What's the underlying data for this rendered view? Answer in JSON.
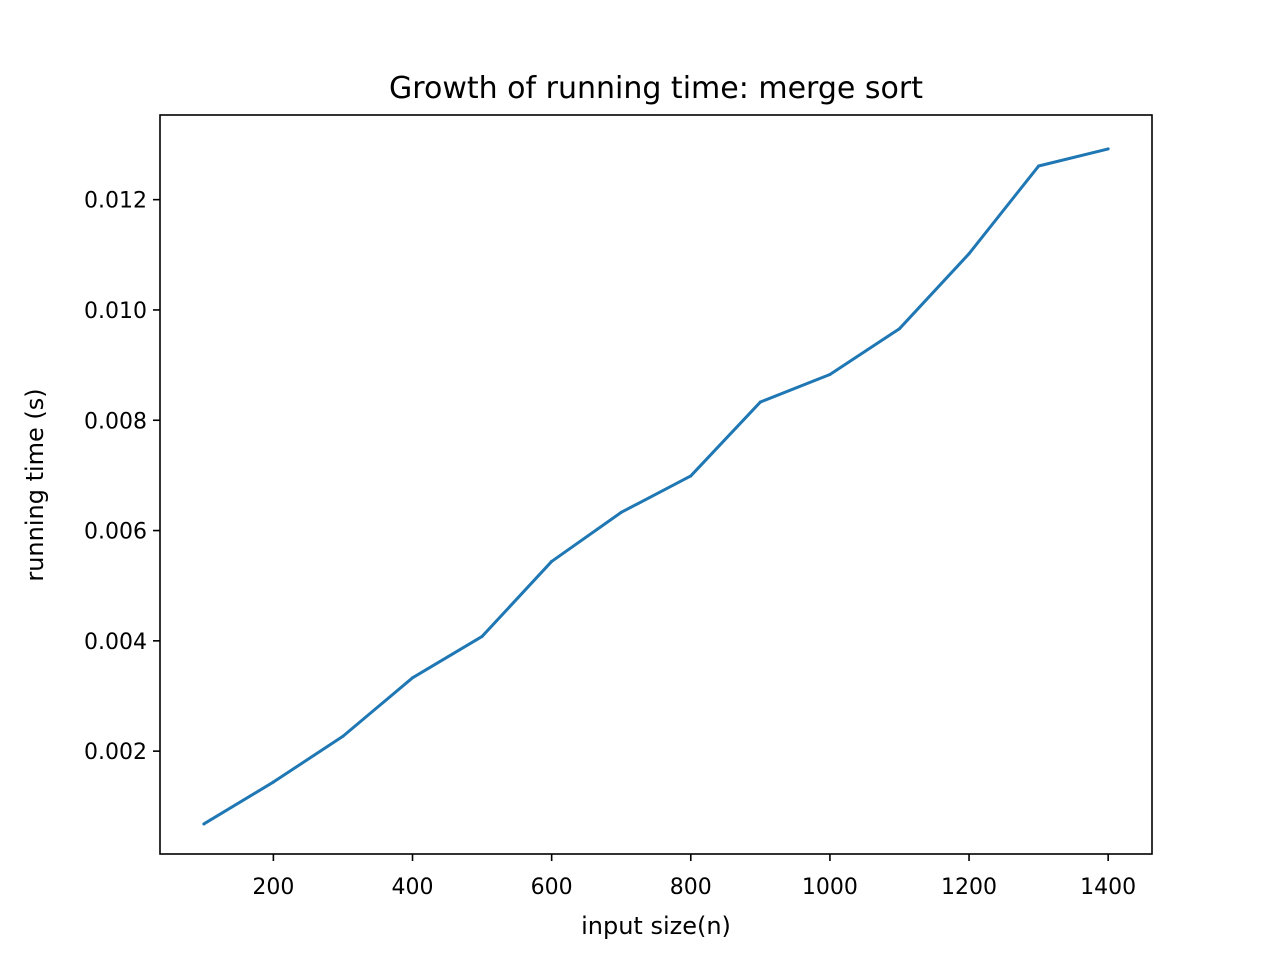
{
  "chart_data": {
    "type": "line",
    "title": "Growth of running time: merge sort",
    "xlabel": "input size(n)",
    "ylabel": "running time (s)",
    "xlim": [
      37,
      1463
    ],
    "ylim": [
      0.000135,
      0.013535
    ],
    "x_ticks": [
      200,
      400,
      600,
      800,
      1000,
      1200,
      1400
    ],
    "x_tick_labels": [
      "200",
      "400",
      "600",
      "800",
      "1000",
      "1200",
      "1400"
    ],
    "y_ticks": [
      0.002,
      0.004,
      0.006,
      0.008,
      0.01,
      0.012
    ],
    "y_tick_labels": [
      "0.002",
      "0.004",
      "0.006",
      "0.008",
      "0.010",
      "0.012"
    ],
    "grid": false,
    "series": [
      {
        "color": "#1f77b4",
        "x": [
          100,
          200,
          300,
          400,
          500,
          600,
          700,
          800,
          900,
          1000,
          1100,
          1200,
          1300,
          1400
        ],
        "y": [
          0.00068,
          0.00144,
          0.00227,
          0.00333,
          0.00408,
          0.00544,
          0.00633,
          0.00699,
          0.00833,
          0.00883,
          0.00966,
          0.01102,
          0.01261,
          0.01292
        ]
      }
    ]
  }
}
